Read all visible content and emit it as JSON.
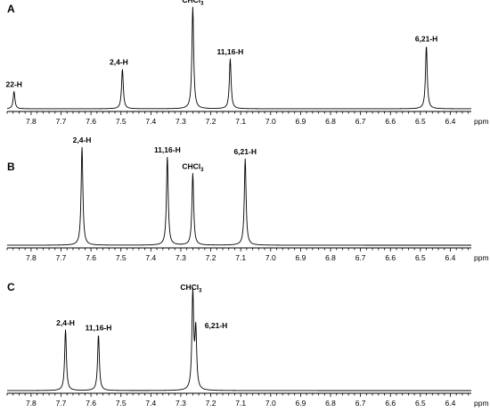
{
  "chart_data": [
    {
      "type": "line",
      "panel": "A",
      "x_unit": "ppm",
      "xlim": [
        7.88,
        6.33
      ],
      "x_ticks": [
        "7.8",
        "7.7",
        "7.6",
        "7.5",
        "7.4",
        "7.3",
        "7.2",
        "7.1",
        "7.0",
        "6.9",
        "6.8",
        "6.7",
        "6.6",
        "6.5",
        "6.4"
      ],
      "peaks": [
        {
          "label": "22-H",
          "shift": 7.857,
          "intensity": 0.17
        },
        {
          "label": "2,4-H",
          "shift": 7.495,
          "intensity": 0.39
        },
        {
          "label": "CHCl3",
          "label_main": "CHCl",
          "label_sub": "3",
          "shift": 7.26,
          "intensity": 1.0
        },
        {
          "label": "11,16-H",
          "shift": 7.135,
          "intensity": 0.49
        },
        {
          "label": "6,21-H",
          "shift": 6.48,
          "intensity": 0.62
        }
      ]
    },
    {
      "type": "line",
      "panel": "B",
      "x_unit": "ppm",
      "xlim": [
        7.88,
        6.33
      ],
      "x_ticks": [
        "7.8",
        "7.7",
        "7.6",
        "7.5",
        "7.4",
        "7.3",
        "7.2",
        "7.1",
        "7.0",
        "6.9",
        "6.8",
        "6.7",
        "6.6",
        "6.5",
        "6.4"
      ],
      "peaks": [
        {
          "label": "2,4-H",
          "shift": 7.63,
          "intensity": 1.0
        },
        {
          "label": "11,16-H",
          "shift": 7.345,
          "intensity": 0.9
        },
        {
          "label": "CHCl3",
          "label_main": "CHCl",
          "label_sub": "3",
          "shift": 7.26,
          "intensity": 0.73
        },
        {
          "label": "6,21-H",
          "shift": 7.085,
          "intensity": 0.88
        }
      ]
    },
    {
      "type": "line",
      "panel": "C",
      "x_unit": "ppm",
      "xlim": [
        7.88,
        6.33
      ],
      "x_ticks": [
        "7.8",
        "7.7",
        "7.6",
        "7.5",
        "7.4",
        "7.3",
        "7.2",
        "7.1",
        "7.0",
        "6.9",
        "6.8",
        "6.7",
        "6.6",
        "6.5",
        "6.4"
      ],
      "peaks": [
        {
          "label": "2,4-H",
          "shift": 7.685,
          "intensity": 0.63
        },
        {
          "label": "11,16-H",
          "shift": 7.575,
          "intensity": 0.58
        },
        {
          "label": "CHCl3",
          "label_main": "CHCl",
          "label_sub": "3",
          "shift": 7.26,
          "intensity": 1.0
        },
        {
          "label": "6,21-H",
          "shift": 7.25,
          "intensity": 0.6
        }
      ]
    }
  ]
}
